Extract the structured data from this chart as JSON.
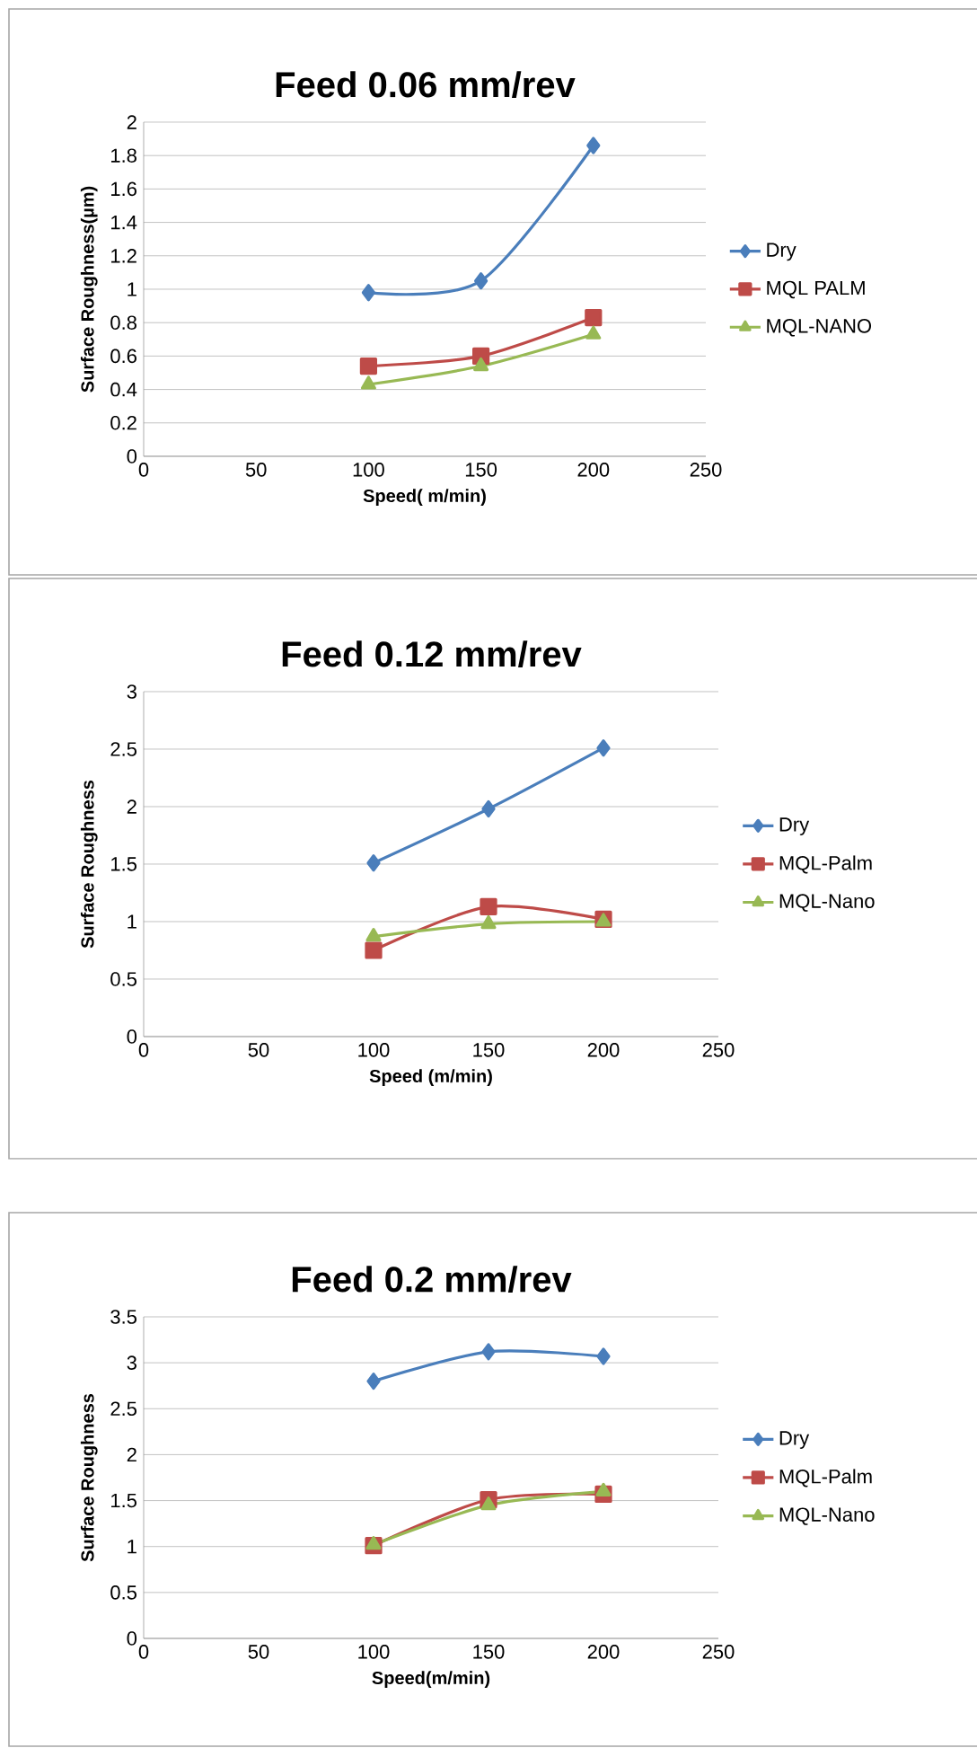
{
  "chart_data": [
    {
      "type": "line",
      "title": "Feed 0.06 mm/rev",
      "xlabel": "Speed( m/min)",
      "ylabel": "Surface Roughness(µm)",
      "x": [
        100,
        150,
        200
      ],
      "xlim": [
        0,
        250
      ],
      "xticks": [
        0,
        50,
        100,
        150,
        200,
        250
      ],
      "ylim": [
        0,
        2
      ],
      "yticks": [
        0,
        0.2,
        0.4,
        0.6,
        0.8,
        1,
        1.2,
        1.4,
        1.6,
        1.8,
        2
      ],
      "grid": "y",
      "legend": "right",
      "series": [
        {
          "name": "Dry",
          "color": "#4a7ebb",
          "marker": "diamond",
          "values": [
            0.98,
            1.05,
            1.86
          ]
        },
        {
          "name": "MQL PALM",
          "color": "#be4b48",
          "marker": "square",
          "values": [
            0.54,
            0.6,
            0.83
          ]
        },
        {
          "name": "MQL-NANO",
          "color": "#98b954",
          "marker": "triangle",
          "values": [
            0.43,
            0.54,
            0.73
          ]
        }
      ]
    },
    {
      "type": "line",
      "title": "Feed 0.12 mm/rev",
      "xlabel": "Speed (m/min)",
      "ylabel": "Surface Roughness",
      "x": [
        100,
        150,
        200
      ],
      "xlim": [
        0,
        250
      ],
      "xticks": [
        0,
        50,
        100,
        150,
        200,
        250
      ],
      "ylim": [
        0,
        3
      ],
      "yticks": [
        0,
        0.5,
        1,
        1.5,
        2,
        2.5,
        3
      ],
      "grid": "y",
      "legend": "right",
      "series": [
        {
          "name": "Dry",
          "color": "#4a7ebb",
          "marker": "diamond",
          "values": [
            1.51,
            1.98,
            2.51
          ]
        },
        {
          "name": "MQL-Palm",
          "color": "#be4b48",
          "marker": "square",
          "values": [
            0.75,
            1.13,
            1.02
          ]
        },
        {
          "name": "MQL-Nano",
          "color": "#98b954",
          "marker": "triangle",
          "values": [
            0.87,
            0.98,
            1.0
          ]
        }
      ]
    },
    {
      "type": "line",
      "title": "Feed 0.2 mm/rev",
      "xlabel": "Speed(m/min)",
      "ylabel": "Surface Roughness",
      "x": [
        100,
        150,
        200
      ],
      "xlim": [
        0,
        250
      ],
      "xticks": [
        0,
        50,
        100,
        150,
        200,
        250
      ],
      "ylim": [
        0,
        3.5
      ],
      "yticks": [
        0,
        0.5,
        1,
        1.5,
        2,
        2.5,
        3,
        3.5
      ],
      "grid": "y",
      "legend": "right",
      "series": [
        {
          "name": "Dry",
          "color": "#4a7ebb",
          "marker": "diamond",
          "values": [
            2.8,
            3.12,
            3.07
          ]
        },
        {
          "name": "MQL-Palm",
          "color": "#be4b48",
          "marker": "square",
          "values": [
            1.01,
            1.51,
            1.57
          ]
        },
        {
          "name": "MQL-Nano",
          "color": "#98b954",
          "marker": "triangle",
          "values": [
            1.02,
            1.45,
            1.6
          ]
        }
      ]
    }
  ]
}
